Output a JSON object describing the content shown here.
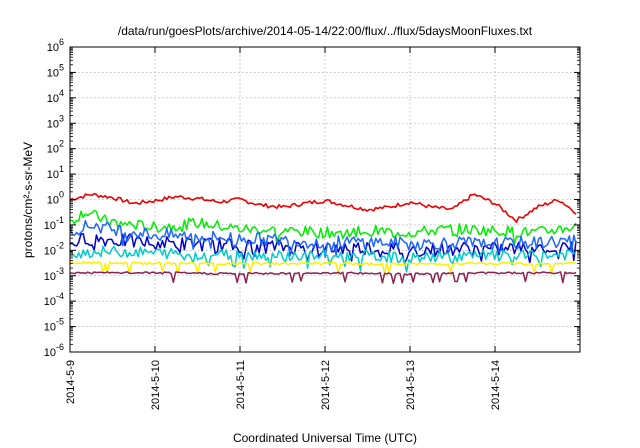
{
  "chart_data": {
    "type": "line",
    "title": "/data/run/goesPlots/archive/2014-05-14/22:00/flux/../flux/5daysMoonFluxes.txt",
    "xlabel": "Coordinated Universal Time (UTC)",
    "ylabel": "protons/cm²-s-sr-MeV",
    "y_scale": "log",
    "ylim": [
      1e-06,
      1000000.0
    ],
    "y_ticks": [
      {
        "value": -6,
        "base": "10",
        "exp": "-6"
      },
      {
        "value": -5,
        "base": "10",
        "exp": "-5"
      },
      {
        "value": -4,
        "base": "10",
        "exp": "-4"
      },
      {
        "value": -3,
        "base": "10",
        "exp": "-3"
      },
      {
        "value": -2,
        "base": "10",
        "exp": "-2"
      },
      {
        "value": -1,
        "base": "10",
        "exp": "-1"
      },
      {
        "value": 0,
        "base": "10",
        "exp": "0"
      },
      {
        "value": 1,
        "base": "10",
        "exp": "1"
      },
      {
        "value": 2,
        "base": "10",
        "exp": "2"
      },
      {
        "value": 3,
        "base": "10",
        "exp": "3"
      },
      {
        "value": 4,
        "base": "10",
        "exp": "4"
      },
      {
        "value": 5,
        "base": "10",
        "exp": "5"
      },
      {
        "value": 6,
        "base": "10",
        "exp": "6"
      }
    ],
    "xlim": [
      "2014-05-09 00:00",
      "2014-05-15 00:00"
    ],
    "x_ticks": [
      "2014-5-9",
      "2014-5-10",
      "2014-5-11",
      "2014-5-12",
      "2014-5-13",
      "2014-5-14"
    ],
    "grid": true,
    "series": [
      {
        "color": "#ee0000",
        "x": [
          "2014-05-09 00:00",
          "2014-05-09 06:00",
          "2014-05-09 12:00",
          "2014-05-09 18:00",
          "2014-05-10 00:00",
          "2014-05-10 06:00",
          "2014-05-10 12:00",
          "2014-05-10 18:00",
          "2014-05-11 00:00",
          "2014-05-11 06:00",
          "2014-05-11 12:00",
          "2014-05-11 18:00",
          "2014-05-12 00:00",
          "2014-05-12 06:00",
          "2014-05-12 12:00",
          "2014-05-12 18:00",
          "2014-05-13 00:00",
          "2014-05-13 06:00",
          "2014-05-13 12:00",
          "2014-05-13 18:00",
          "2014-05-14 00:00",
          "2014-05-14 06:00",
          "2014-05-14 12:00",
          "2014-05-14 18:00",
          "2014-05-14 23:00"
        ],
        "y": [
          1.0,
          1.6,
          1.2,
          0.7,
          0.9,
          1.3,
          1.1,
          0.8,
          1.0,
          0.6,
          0.5,
          0.7,
          0.9,
          0.6,
          0.4,
          0.5,
          0.8,
          0.5,
          0.4,
          1.6,
          0.7,
          0.15,
          0.5,
          1.0,
          0.3
        ]
      },
      {
        "color": "#00ee00",
        "x": [
          "2014-05-09 00:00",
          "2014-05-09 04:00",
          "2014-05-09 10:00",
          "2014-05-09 18:00",
          "2014-05-10 00:00",
          "2014-05-10 12:00",
          "2014-05-11 00:00",
          "2014-05-11 12:00",
          "2014-05-12 00:00",
          "2014-05-12 12:00",
          "2014-05-13 00:00",
          "2014-05-13 12:00",
          "2014-05-14 00:00",
          "2014-05-14 12:00",
          "2014-05-14 23:00"
        ],
        "y": [
          0.12,
          0.35,
          0.15,
          0.1,
          0.08,
          0.12,
          0.07,
          0.06,
          0.05,
          0.06,
          0.05,
          0.07,
          0.06,
          0.05,
          0.09
        ]
      },
      {
        "color": "#0000cc",
        "x": [
          "2014-05-09 00:00",
          "2014-05-09 06:00",
          "2014-05-09 12:00",
          "2014-05-10 00:00",
          "2014-05-10 12:00",
          "2014-05-11 00:00",
          "2014-05-11 12:00",
          "2014-05-12 00:00",
          "2014-05-12 12:00",
          "2014-05-13 00:00",
          "2014-05-13 12:00",
          "2014-05-14 00:00",
          "2014-05-14 12:00",
          "2014-05-14 23:00"
        ],
        "y": [
          0.02,
          0.03,
          0.025,
          0.02,
          0.018,
          0.015,
          0.014,
          0.012,
          0.013,
          0.01,
          0.012,
          0.011,
          0.013,
          0.015
        ]
      },
      {
        "color": "#1e66ff",
        "x": [
          "2014-05-09 00:00",
          "2014-05-09 06:00",
          "2014-05-09 12:00",
          "2014-05-10 00:00",
          "2014-05-10 12:00",
          "2014-05-11 00:00",
          "2014-05-11 12:00",
          "2014-05-12 00:00",
          "2014-05-12 12:00",
          "2014-05-13 00:00",
          "2014-05-13 12:00",
          "2014-05-14 00:00",
          "2014-05-14 12:00",
          "2014-05-14 23:00"
        ],
        "y": [
          0.06,
          0.1,
          0.07,
          0.04,
          0.035,
          0.03,
          0.025,
          0.02,
          0.022,
          0.018,
          0.02,
          0.018,
          0.02,
          0.025
        ]
      },
      {
        "color": "#00cccc",
        "x": [
          "2014-05-09 00:00",
          "2014-05-09 12:00",
          "2014-05-10 00:00",
          "2014-05-10 12:00",
          "2014-05-11 00:00",
          "2014-05-11 12:00",
          "2014-05-12 00:00",
          "2014-05-12 12:00",
          "2014-05-13 00:00",
          "2014-05-13 12:00",
          "2014-05-14 00:00",
          "2014-05-14 12:00",
          "2014-05-14 23:00"
        ],
        "y": [
          0.008,
          0.009,
          0.008,
          0.007,
          0.007,
          0.006,
          0.006,
          0.006,
          0.005,
          0.006,
          0.006,
          0.006,
          0.007
        ]
      },
      {
        "color": "#ffee00",
        "x": [
          "2014-05-09 00:00",
          "2014-05-10 00:00",
          "2014-05-11 00:00",
          "2014-05-12 00:00",
          "2014-05-13 00:00",
          "2014-05-14 00:00",
          "2014-05-14 23:00"
        ],
        "y": [
          0.0032,
          0.0031,
          0.003,
          0.003,
          0.0029,
          0.003,
          0.0031
        ]
      },
      {
        "color": "#8b2252",
        "x": [
          "2014-05-09 00:00",
          "2014-05-10 00:00",
          "2014-05-11 00:00",
          "2014-05-12 00:00",
          "2014-05-13 00:00",
          "2014-05-14 00:00",
          "2014-05-14 23:00"
        ],
        "y": [
          0.0013,
          0.0013,
          0.0012,
          0.0013,
          0.0012,
          0.0013,
          0.0013
        ]
      }
    ]
  }
}
